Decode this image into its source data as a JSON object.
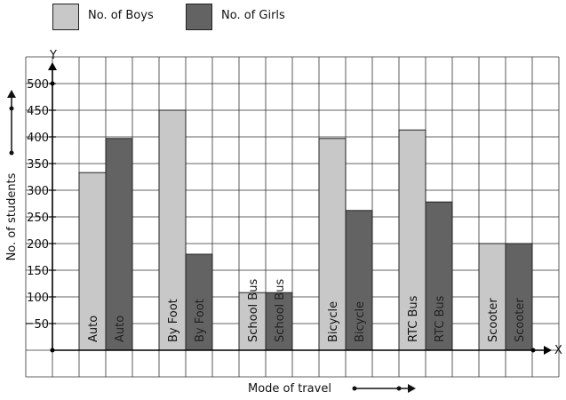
{
  "legend": {
    "items": [
      {
        "label": "No. of Boys",
        "color": "#c8c8c8"
      },
      {
        "label": "No. of Girls",
        "color": "#636363"
      }
    ]
  },
  "chart_data": {
    "type": "bar",
    "title": "",
    "xlabel": "Mode of travel",
    "ylabel": "No. of students",
    "x_axis_letter": "X",
    "y_axis_letter": "Y",
    "ylim": [
      -50,
      550
    ],
    "yticks": [
      50,
      100,
      150,
      200,
      250,
      300,
      350,
      400,
      450,
      500
    ],
    "ytick_labels": [
      "50",
      "100",
      "150",
      "200",
      "250",
      "300",
      "350",
      "400",
      "450",
      "500"
    ],
    "grid": true,
    "legend_position": "top",
    "categories": [
      "Auto",
      "By Foot",
      "School Bus",
      "Bicycle",
      "RTC Bus",
      "Scooter"
    ],
    "series": [
      {
        "name": "No. of Boys",
        "color": "#c8c8c8",
        "label_color": "#111111",
        "values": [
          333,
          450,
          108,
          397,
          413,
          200
        ],
        "bar_labels": [
          "Auto",
          "By Foot",
          "School Bus",
          "Bicycle",
          "RTC Bus",
          "Scooter"
        ]
      },
      {
        "name": "No. of Girls",
        "color": "#636363",
        "label_color": "#222222",
        "values": [
          397,
          180,
          108,
          262,
          278,
          200
        ],
        "bar_labels": [
          "Auto",
          "By Foot",
          "School Bus",
          "Bicycle",
          "RTC Bus",
          "Scooter"
        ]
      }
    ]
  }
}
